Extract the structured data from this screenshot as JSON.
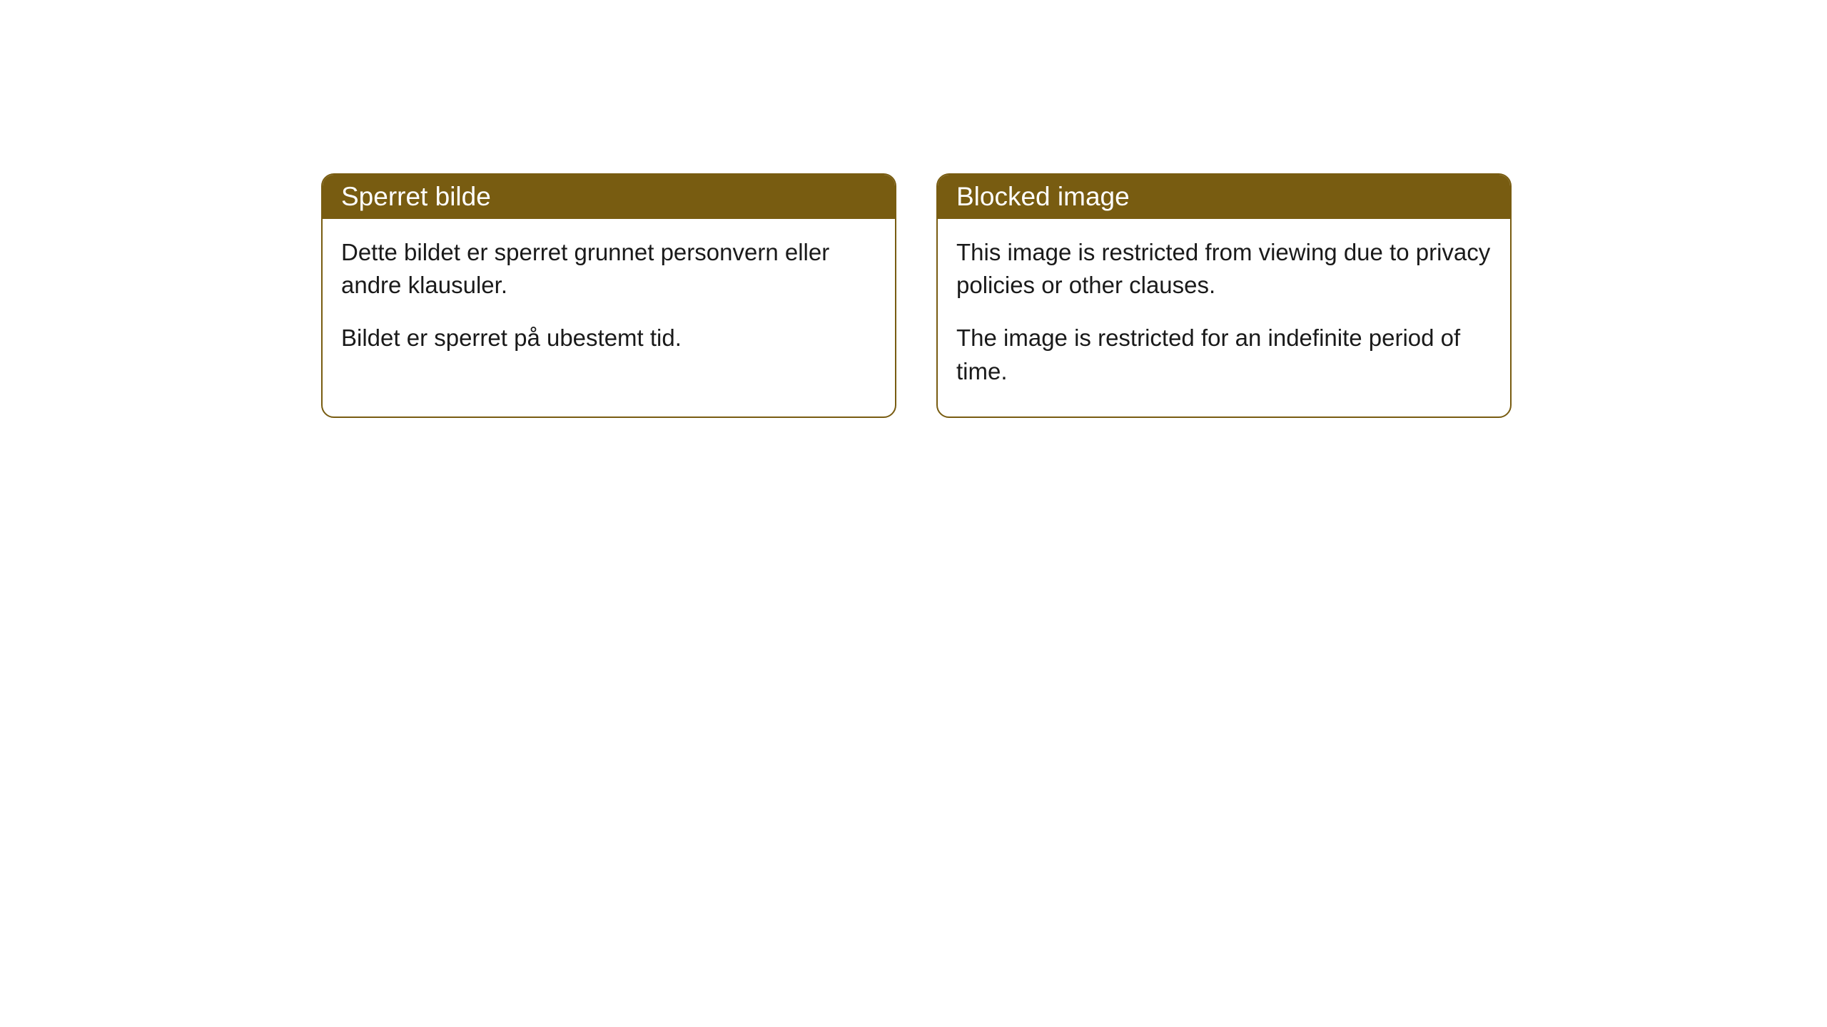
{
  "cards": [
    {
      "title": "Sperret bilde",
      "paragraph1": "Dette bildet er sperret grunnet personvern eller andre klausuler.",
      "paragraph2": "Bildet er sperret på ubestemt tid."
    },
    {
      "title": "Blocked image",
      "paragraph1": "This image is restricted from viewing due to privacy policies or other clauses.",
      "paragraph2": "The image is restricted for an indefinite period of time."
    }
  ],
  "styling": {
    "header_bg_color": "#785c11",
    "header_text_color": "#ffffff",
    "border_color": "#785c11",
    "body_text_color": "#1a1a1a",
    "body_bg_color": "#ffffff",
    "page_bg_color": "#ffffff",
    "border_radius": 18,
    "title_fontsize": 37,
    "body_fontsize": 33
  }
}
